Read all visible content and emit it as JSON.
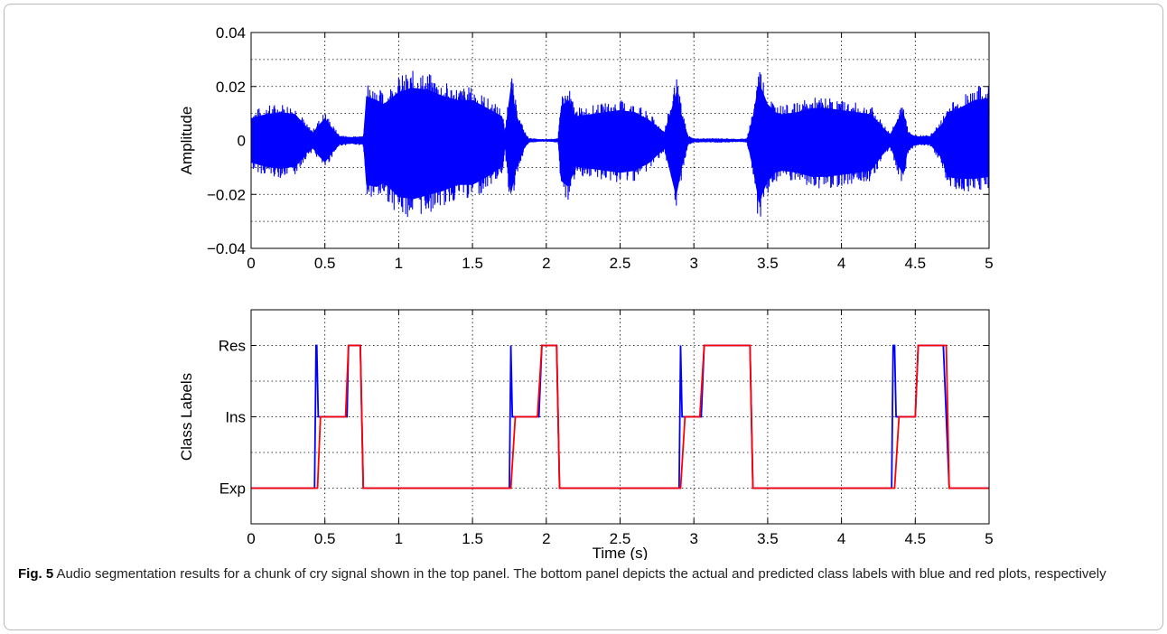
{
  "chart_data": [
    {
      "type": "line",
      "panel": "top",
      "ylabel": "Amplitude",
      "xlim": [
        0,
        5
      ],
      "ylim": [
        -0.04,
        0.04
      ],
      "x_ticks": [
        "0",
        "0.5",
        "1",
        "1.5",
        "2",
        "2.5",
        "3",
        "3.5",
        "4",
        "4.5",
        "5"
      ],
      "y_ticks": [
        "−0.04",
        "−0.02",
        "0",
        "0.02",
        "0.04"
      ],
      "grid": true,
      "series": [
        {
          "color": "#0000ff",
          "envelope": {
            "x": [
              0,
              0.1,
              0.2,
              0.3,
              0.38,
              0.42,
              0.45,
              0.5,
              0.55,
              0.6,
              0.7,
              0.76,
              0.78,
              0.85,
              0.9,
              1,
              1.1,
              1.2,
              1.3,
              1.4,
              1.5,
              1.6,
              1.7,
              1.72,
              1.76,
              1.8,
              1.85,
              1.88,
              1.95,
              2,
              2.08,
              2.1,
              2.15,
              2.2,
              2.3,
              2.4,
              2.5,
              2.6,
              2.7,
              2.8,
              2.85,
              2.88,
              2.92,
              2.96,
              3,
              3.1,
              3.2,
              3.3,
              3.36,
              3.4,
              3.44,
              3.5,
              3.55,
              3.6,
              3.7,
              3.8,
              3.9,
              4,
              4.1,
              4.2,
              4.3,
              4.33,
              4.38,
              4.42,
              4.45,
              4.5,
              4.6,
              4.68,
              4.72,
              4.8,
              4.9,
              5
            ],
            "upper": [
              0.011,
              0.013,
              0.014,
              0.013,
              0.006,
              0.004,
              0.007,
              0.011,
              0.006,
              0.002,
              0.0015,
              0.002,
              0.022,
              0.02,
              0.018,
              0.024,
              0.026,
              0.025,
              0.022,
              0.02,
              0.02,
              0.016,
              0.012,
              0.004,
              0.027,
              0.012,
              0.004,
              0.001,
              0.0005,
              0.0005,
              0.0008,
              0.017,
              0.02,
              0.012,
              0.013,
              0.014,
              0.015,
              0.014,
              0.01,
              0.004,
              0.016,
              0.024,
              0.012,
              0.002,
              0.0008,
              0.0008,
              0.0008,
              0.0006,
              0.0008,
              0.012,
              0.029,
              0.018,
              0.014,
              0.013,
              0.014,
              0.016,
              0.016,
              0.015,
              0.014,
              0.013,
              0.005,
              0.003,
              0.01,
              0.014,
              0.004,
              0.002,
              0.002,
              0.008,
              0.014,
              0.016,
              0.02,
              0.021
            ],
            "lower": [
              -0.011,
              -0.013,
              -0.014,
              -0.013,
              -0.006,
              -0.004,
              -0.007,
              -0.011,
              -0.006,
              -0.002,
              -0.0015,
              -0.002,
              -0.022,
              -0.023,
              -0.021,
              -0.028,
              -0.029,
              -0.027,
              -0.025,
              -0.022,
              -0.022,
              -0.018,
              -0.013,
              -0.004,
              -0.027,
              -0.013,
              -0.004,
              -0.001,
              -0.0005,
              -0.0005,
              -0.0008,
              -0.02,
              -0.023,
              -0.013,
              -0.014,
              -0.015,
              -0.016,
              -0.015,
              -0.011,
              -0.004,
              -0.019,
              -0.028,
              -0.013,
              -0.002,
              -0.0008,
              -0.0008,
              -0.0008,
              -0.0006,
              -0.0008,
              -0.014,
              -0.031,
              -0.02,
              -0.016,
              -0.015,
              -0.016,
              -0.018,
              -0.018,
              -0.017,
              -0.016,
              -0.015,
              -0.005,
              -0.003,
              -0.012,
              -0.017,
              -0.005,
              -0.002,
              -0.002,
              -0.009,
              -0.018,
              -0.019,
              -0.019,
              -0.018
            ]
          }
        }
      ]
    },
    {
      "type": "line",
      "panel": "bottom",
      "xlabel": "Time (s)",
      "ylabel": "Class Labels",
      "xlim": [
        0,
        5
      ],
      "ylim": [
        0.5,
        3.5
      ],
      "x_ticks": [
        "0",
        "0.5",
        "1",
        "1.5",
        "2",
        "2.5",
        "3",
        "3.5",
        "4",
        "4.5",
        "5"
      ],
      "y_ticks": [
        {
          "value": 1,
          "label": "Exp"
        },
        {
          "value": 2,
          "label": "Ins"
        },
        {
          "value": 3,
          "label": "Res"
        }
      ],
      "grid": true,
      "series": [
        {
          "color": "#0000ff",
          "x": [
            0,
            0.43,
            0.44,
            0.445,
            0.455,
            0.47,
            0.65,
            0.66,
            0.74,
            0.76,
            1.75,
            1.76,
            1.77,
            1.78,
            1.95,
            1.97,
            2.07,
            2.09,
            2.9,
            2.91,
            2.92,
            2.93,
            3.05,
            3.07,
            3.38,
            3.4,
            4.34,
            4.35,
            4.36,
            4.37,
            4.38,
            4.5,
            4.52,
            4.67,
            4.69,
            4.73,
            5
          ],
          "y": [
            1,
            1,
            3,
            3,
            2,
            2,
            2,
            3,
            3,
            1,
            1,
            3,
            2,
            2,
            2,
            3,
            3,
            1,
            1,
            3,
            2,
            2,
            2,
            3,
            3,
            1,
            1,
            3,
            3,
            2,
            2,
            2,
            3,
            3,
            3,
            1,
            1
          ]
        },
        {
          "color": "#ff0000",
          "x": [
            0,
            0.45,
            0.47,
            0.64,
            0.66,
            0.74,
            0.76,
            1.76,
            1.79,
            1.94,
            1.97,
            2.07,
            2.09,
            2.91,
            2.94,
            3.04,
            3.07,
            3.38,
            3.4,
            4.36,
            4.39,
            4.5,
            4.52,
            4.71,
            4.73,
            5
          ],
          "y": [
            1,
            1,
            2,
            2,
            3,
            3,
            1,
            1,
            2,
            2,
            3,
            3,
            1,
            1,
            2,
            2,
            3,
            3,
            1,
            1,
            2,
            2,
            3,
            3,
            1,
            1
          ]
        }
      ]
    }
  ],
  "caption": {
    "label": "Fig. 5",
    "text": " Audio segmentation results for a chunk of cry signal shown in the top panel. The bottom panel depicts the actual and predicted class labels with blue and red plots, respectively"
  }
}
